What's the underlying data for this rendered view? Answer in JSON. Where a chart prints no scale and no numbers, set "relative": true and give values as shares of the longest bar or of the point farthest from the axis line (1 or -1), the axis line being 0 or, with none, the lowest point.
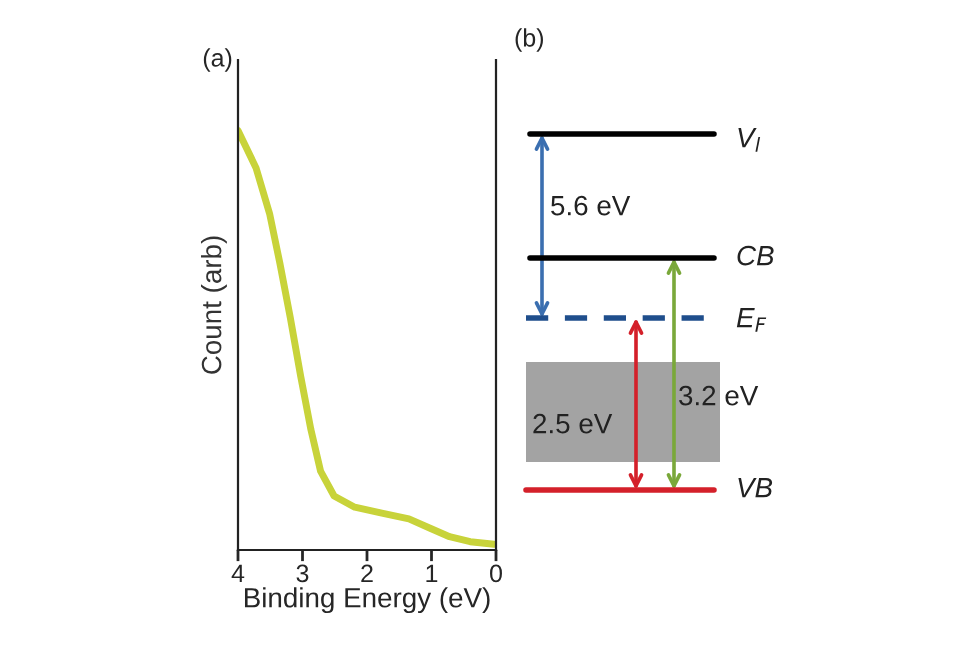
{
  "chart_data": [
    {
      "type": "line",
      "title": "(a)",
      "xlabel": "Binding Energy (eV)",
      "ylabel": "Count (arb)",
      "relative": true,
      "xlim": [
        4,
        0
      ],
      "xticks": [
        4,
        3,
        2,
        1,
        0
      ],
      "x": [
        4.0,
        3.72,
        3.51,
        3.35,
        3.19,
        3.03,
        2.87,
        2.72,
        2.51,
        2.19,
        1.77,
        1.35,
        1.03,
        0.72,
        0.4,
        0.03
      ],
      "series": [
        {
          "color": "#c8d33a",
          "values": [
            1,
            0.91,
            0.8,
            0.68,
            0.55,
            0.41,
            0.28,
            0.18,
            0.12,
            0.093,
            0.079,
            0.065,
            0.043,
            0.022,
            0.01,
            0.004
          ]
        }
      ],
      "grid": false,
      "legend": false
    },
    {
      "type": "other",
      "title": "(b)",
      "annotations": [
        "V$_{l}$",
        "CB",
        "E$_{F}$",
        "VB",
        "5.6 eV",
        "3.2 eV",
        "2.5 eV"
      ]
    }
  ]
}
